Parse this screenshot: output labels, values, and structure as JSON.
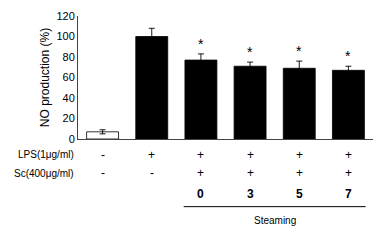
{
  "chart_data": {
    "type": "bar",
    "categories": [
      null,
      null,
      null,
      null,
      null,
      null
    ],
    "values": [
      7.0,
      100.0,
      77.0,
      71.0,
      69.0,
      67.0
    ],
    "errors": [
      2.0,
      8.0,
      6.0,
      4.0,
      7.0,
      4.0
    ],
    "colors": [
      "white",
      "black",
      "black",
      "black",
      "black",
      "black"
    ],
    "ylabel": "NO production (%)",
    "ylim": [
      0,
      120
    ],
    "yticks": [
      0,
      20,
      40,
      60,
      80,
      100,
      120
    ],
    "grid": false,
    "tick_labels": "y",
    "annotations": [
      {
        "bar": 2,
        "text": "*"
      },
      {
        "bar": 3,
        "text": "*"
      },
      {
        "bar": 4,
        "text": "*"
      },
      {
        "bar": 5,
        "text": "*"
      }
    ],
    "rows": [
      {
        "label": "LPS(1μg/ml)",
        "signs": [
          "-",
          "+",
          "+",
          "+",
          "+",
          "+"
        ]
      },
      {
        "label": "Sc(400μg/ml)",
        "signs": [
          "-",
          "-",
          "+",
          "+",
          "+",
          "+"
        ]
      }
    ],
    "steaming": {
      "label": "Steaming",
      "bars": [
        2,
        3,
        4,
        5
      ],
      "labels": [
        "0",
        "3",
        "5",
        "7"
      ]
    }
  }
}
